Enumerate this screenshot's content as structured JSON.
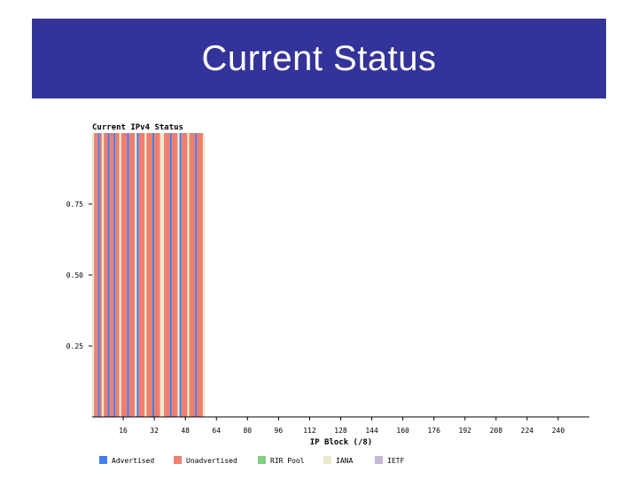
{
  "slide": {
    "title": "Current Status"
  },
  "colors": {
    "advertised": "#3f7fef",
    "unadvertised": "#f07f70",
    "rir_pool": "#7fcf7f",
    "iana": "#e9ebcc",
    "ietf": "#c5b6d7",
    "banner": "#333399"
  },
  "chart_data": {
    "type": "bar",
    "stacked": true,
    "title": "Current IPv4 Status",
    "xlabel": "IP Block (/8)",
    "ylabel": "",
    "xlim": [
      0,
      256
    ],
    "ylim": [
      0,
      1
    ],
    "x_ticks": [
      16,
      32,
      48,
      64,
      80,
      96,
      112,
      128,
      144,
      160,
      176,
      192,
      208,
      224,
      240
    ],
    "x_tick_labels": [
      "16",
      "32",
      "48",
      "64",
      "80",
      "96",
      "112",
      "128",
      "144",
      "160",
      "176",
      "192",
      "208",
      "224",
      "240"
    ],
    "y_ticks": [
      0.25,
      0.5,
      0.75
    ],
    "y_tick_labels": [
      "0.25",
      "0.50",
      "0.75"
    ],
    "grid": false,
    "legend_position": "bottom",
    "legend": [
      {
        "key": "advertised",
        "label": "Advertised"
      },
      {
        "key": "unadvertised",
        "label": "Unadvertised"
      },
      {
        "key": "rir_pool",
        "label": "RIR Pool"
      },
      {
        "key": "iana",
        "label": "IANA"
      },
      {
        "key": "ietf",
        "label": "IETF"
      }
    ],
    "segments": [
      {
        "from": 0,
        "to": 1,
        "category": "iana"
      },
      {
        "from": 1,
        "to": 3,
        "category": "unadvertised"
      },
      {
        "from": 3,
        "to": 4,
        "category": "advertised"
      },
      {
        "from": 4,
        "to": 5,
        "category": "unadvertised"
      },
      {
        "from": 5,
        "to": 6,
        "category": "iana"
      },
      {
        "from": 6,
        "to": 8,
        "category": "unadvertised"
      },
      {
        "from": 8,
        "to": 9,
        "category": "advertised"
      },
      {
        "from": 9,
        "to": 11,
        "category": "unadvertised"
      },
      {
        "from": 11,
        "to": 12,
        "category": "advertised"
      },
      {
        "from": 12,
        "to": 14,
        "category": "unadvertised"
      },
      {
        "from": 14,
        "to": 15,
        "category": "iana"
      },
      {
        "from": 15,
        "to": 18,
        "category": "unadvertised"
      },
      {
        "from": 18,
        "to": 19,
        "category": "advertised"
      },
      {
        "from": 19,
        "to": 22,
        "category": "unadvertised"
      },
      {
        "from": 22,
        "to": 23,
        "category": "iana"
      },
      {
        "from": 23,
        "to": 24,
        "category": "advertised"
      },
      {
        "from": 24,
        "to": 27,
        "category": "unadvertised"
      },
      {
        "from": 27,
        "to": 28,
        "category": "iana"
      },
      {
        "from": 28,
        "to": 31,
        "category": "unadvertised"
      },
      {
        "from": 31,
        "to": 32,
        "category": "advertised"
      },
      {
        "from": 32,
        "to": 35,
        "category": "unadvertised"
      },
      {
        "from": 35,
        "to": 36,
        "category": "iana"
      },
      {
        "from": 36,
        "to": 37,
        "category": "iana"
      },
      {
        "from": 37,
        "to": 40,
        "category": "unadvertised"
      },
      {
        "from": 40,
        "to": 41,
        "category": "advertised"
      },
      {
        "from": 41,
        "to": 44,
        "category": "unadvertised"
      },
      {
        "from": 44,
        "to": 45,
        "category": "iana"
      },
      {
        "from": 45,
        "to": 46,
        "category": "advertised"
      },
      {
        "from": 46,
        "to": 49,
        "category": "unadvertised"
      },
      {
        "from": 49,
        "to": 50,
        "category": "iana"
      },
      {
        "from": 50,
        "to": 53,
        "category": "unadvertised"
      },
      {
        "from": 53,
        "to": 54,
        "category": "advertised"
      },
      {
        "from": 54,
        "to": 57,
        "category": "unadvertised"
      },
      {
        "from": 57,
        "to": 58,
        "category": "iana"
      }
    ],
    "columns_advertised_until": 0
  }
}
